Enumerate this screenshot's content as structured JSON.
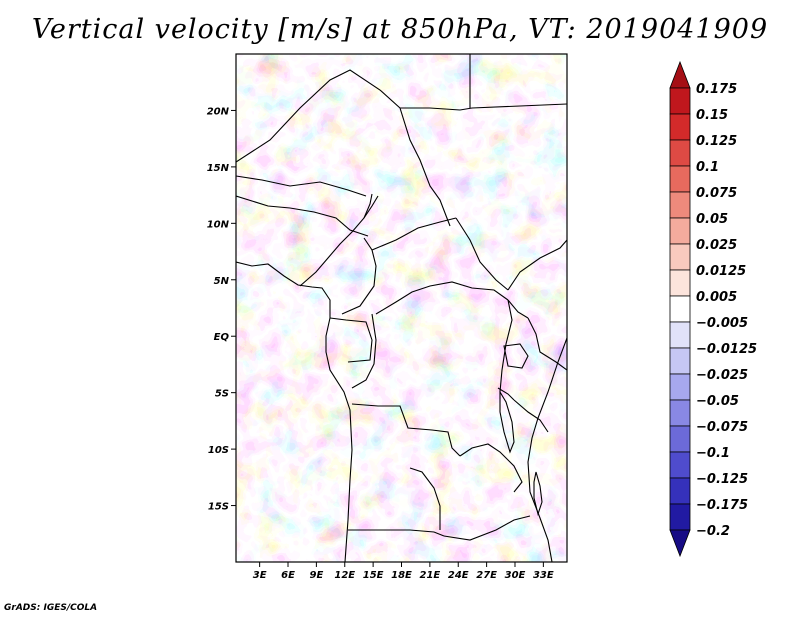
{
  "title": "Vertical velocity [m/s] at 850hPa, VT: 2019041909",
  "footer": "GrADS: IGES/COLA",
  "map": {
    "lat_labels": [
      "20N",
      "15N",
      "10N",
      "5N",
      "EQ",
      "5S",
      "10S",
      "15S"
    ],
    "lat_values": [
      20,
      15,
      10,
      5,
      0,
      -5,
      -10,
      -15
    ],
    "lon_labels": [
      "3E",
      "6E",
      "9E",
      "12E",
      "15E",
      "18E",
      "21E",
      "24E",
      "27E",
      "30E",
      "33E"
    ],
    "lon_values": [
      3,
      6,
      9,
      12,
      15,
      18,
      21,
      24,
      27,
      30,
      33
    ],
    "lon_range": [
      0.5,
      35.5
    ],
    "lat_range": [
      -20,
      25
    ]
  },
  "colorbar": {
    "labels": [
      "0.175",
      "0.15",
      "0.125",
      "0.1",
      "0.075",
      "0.05",
      "0.025",
      "0.0125",
      "0.005",
      "−0.005",
      "−0.0125",
      "−0.025",
      "−0.05",
      "−0.075",
      "−0.1",
      "−0.125",
      "−0.175",
      "−0.2"
    ],
    "colors": [
      "#a50f15",
      "#c0171d",
      "#d32a2a",
      "#de4a44",
      "#e76a5e",
      "#ee8a7c",
      "#f4ab9d",
      "#f9cabe",
      "#fce4dc",
      "#ffffff",
      "#e1e2f9",
      "#c6c7f4",
      "#a7a8ee",
      "#8988e4",
      "#6c6ad9",
      "#4f4ccd",
      "#3531bb",
      "#211aa2",
      "#170c85"
    ]
  }
}
